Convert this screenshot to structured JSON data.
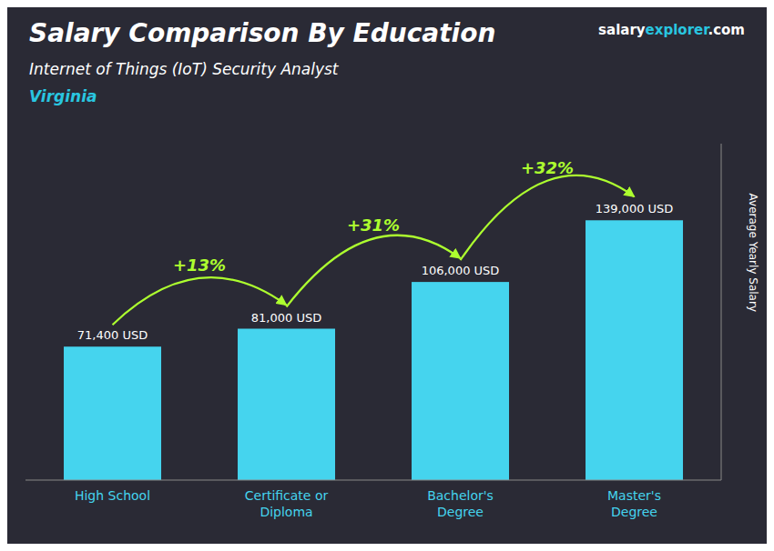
{
  "chart_data": {
    "type": "bar",
    "title": "Salary Comparison By Education",
    "subtitle": "Internet of Things (IoT) Security Analyst",
    "ylabel": "Average Yearly Salary",
    "categories": [
      "High School",
      "Certificate or\nDiploma",
      "Bachelor's\nDegree",
      "Master's\nDegree"
    ],
    "values": [
      71400,
      81000,
      106000,
      139000
    ],
    "value_labels": [
      "71,400 USD",
      "81,000 USD",
      "106,000 USD",
      "139,000 USD"
    ],
    "data_labels": true,
    "color": "#45D4EE",
    "ylim": [
      0,
      180000
    ],
    "tick_labels": "x",
    "annotations": [
      {
        "text": "Virginia",
        "color": "#29C6E0"
      },
      {
        "text": "salary",
        "color": "#FFFFFF"
      },
      {
        "text": "explorer",
        "color": "#29C6E0"
      },
      {
        "text": ".com",
        "color": "#FFFFFF"
      },
      {
        "text": "+13%",
        "color": "#ADFF2F",
        "from": 0,
        "to": 1
      },
      {
        "text": "+31%",
        "color": "#ADFF2F",
        "from": 1,
        "to": 2
      },
      {
        "text": "+32%",
        "color": "#ADFF2F",
        "from": 2,
        "to": 3
      }
    ]
  }
}
